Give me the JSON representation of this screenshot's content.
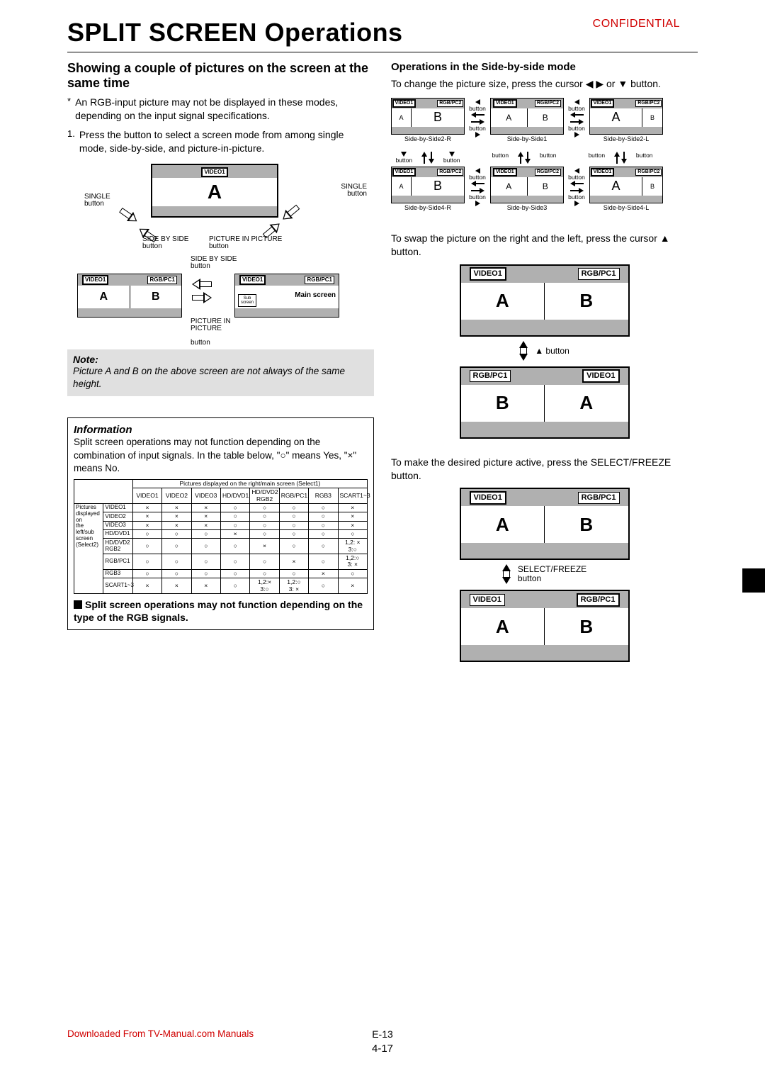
{
  "watermark": "CONFIDENTIAL",
  "title": "SPLIT SCREEN Operations",
  "left": {
    "heading": "Showing a couple of pictures on the screen at the same time",
    "note_ast": "An RGB-input picture may not be displayed in these modes, depending on the input signal specifications.",
    "step1": "Press the button to select a screen mode from among single mode, side-by-side, and picture-in-picture.",
    "d1": {
      "video1": "VIDEO1",
      "A": "A",
      "single_btn_l": "SINGLE",
      "single_btn_r": "SINGLE",
      "btn": "button",
      "sbs_btn": "SIDE BY SIDE",
      "pip_btn": "PICTURE IN PICTURE"
    },
    "d2": {
      "video1": "VIDEO1",
      "rgbpc1": "RGB/PC1",
      "A": "A",
      "B": "B",
      "sbs_btn": "SIDE BY SIDE",
      "btn": "button",
      "pip_btn": "PICTURE IN\nPICTURE",
      "sub": "Sub\nscreen",
      "main": "Main screen"
    },
    "note_head": "Note:",
    "note_body": "Picture A and B on the above screen are not always of the same height.",
    "info_head": "Information",
    "info_body": "Split screen operations may not function depending on the combination of input signals. In the table below, \"○\" means Yes, \"×\" means No.",
    "table": {
      "top_span": "Pictures displayed on the right/main screen (Select1)",
      "cols": [
        "VIDEO1",
        "VIDEO2",
        "VIDEO3",
        "HD/DVD1",
        "HD/DVD2\nRGB2",
        "RGB/PC1",
        "RGB3",
        "SCART1~3"
      ],
      "row_span": "Pictures\ndisplayed on\nthe left/sub\nscreen\n(Select2)",
      "rows": [
        [
          "VIDEO1",
          "×",
          "×",
          "×",
          "○",
          "○",
          "○",
          "○",
          "×"
        ],
        [
          "VIDEO2",
          "×",
          "×",
          "×",
          "○",
          "○",
          "○",
          "○",
          "×"
        ],
        [
          "VIDEO3",
          "×",
          "×",
          "×",
          "○",
          "○",
          "○",
          "○",
          "×"
        ],
        [
          "HD/DVD1",
          "○",
          "○",
          "○",
          "×",
          "○",
          "○",
          "○",
          "○"
        ],
        [
          "HD/DVD2\nRGB2",
          "○",
          "○",
          "○",
          "○",
          "×",
          "○",
          "○",
          "1,2: ×\n3:○"
        ],
        [
          "RGB/PC1",
          "○",
          "○",
          "○",
          "○",
          "○",
          "×",
          "○",
          "1,2:○\n3: ×"
        ],
        [
          "RGB3",
          "○",
          "○",
          "○",
          "○",
          "○",
          "○",
          "×",
          "○"
        ],
        [
          "SCART1~3",
          "×",
          "×",
          "×",
          "○",
          "1,2:×\n3:○",
          "1,2:○\n3: ×",
          "○",
          "×"
        ]
      ]
    },
    "info_foot": "Split screen operations may not function depending on the type of the RGB signals."
  },
  "right": {
    "heading": "Operations in the Side-by-side mode",
    "intro": "To change the picture size, press the cursor ◀ ▶ or ▼ button.",
    "grid": {
      "video1": "VIDEO1",
      "rgbpc2": "RGB/PC2",
      "A": "A",
      "B": "B",
      "btn": "button",
      "captions": [
        "Side-by-Side2-R",
        "Side-by-Side1",
        "Side-by-Side2-L",
        "Side-by-Side4-R",
        "Side-by-Side3",
        "Side-by-Side4-L"
      ]
    },
    "swap_intro": "To swap the picture on the right and the left, press the cursor ▲ button.",
    "swap": {
      "video1": "VIDEO1",
      "rgbpc1": "RGB/PC1",
      "A": "A",
      "B": "B",
      "btn": "▲ button"
    },
    "select_intro": "To  make the desired picture active, press the SELECT/FREEZE button.",
    "select": {
      "video1": "VIDEO1",
      "rgbpc1": "RGB/PC1",
      "A": "A",
      "B": "B",
      "btn": "SELECT/FREEZE\nbutton"
    }
  },
  "footer": {
    "dl": "Downloaded From TV-Manual.com Manuals",
    "p1": "E-13",
    "p2": "4-17"
  }
}
